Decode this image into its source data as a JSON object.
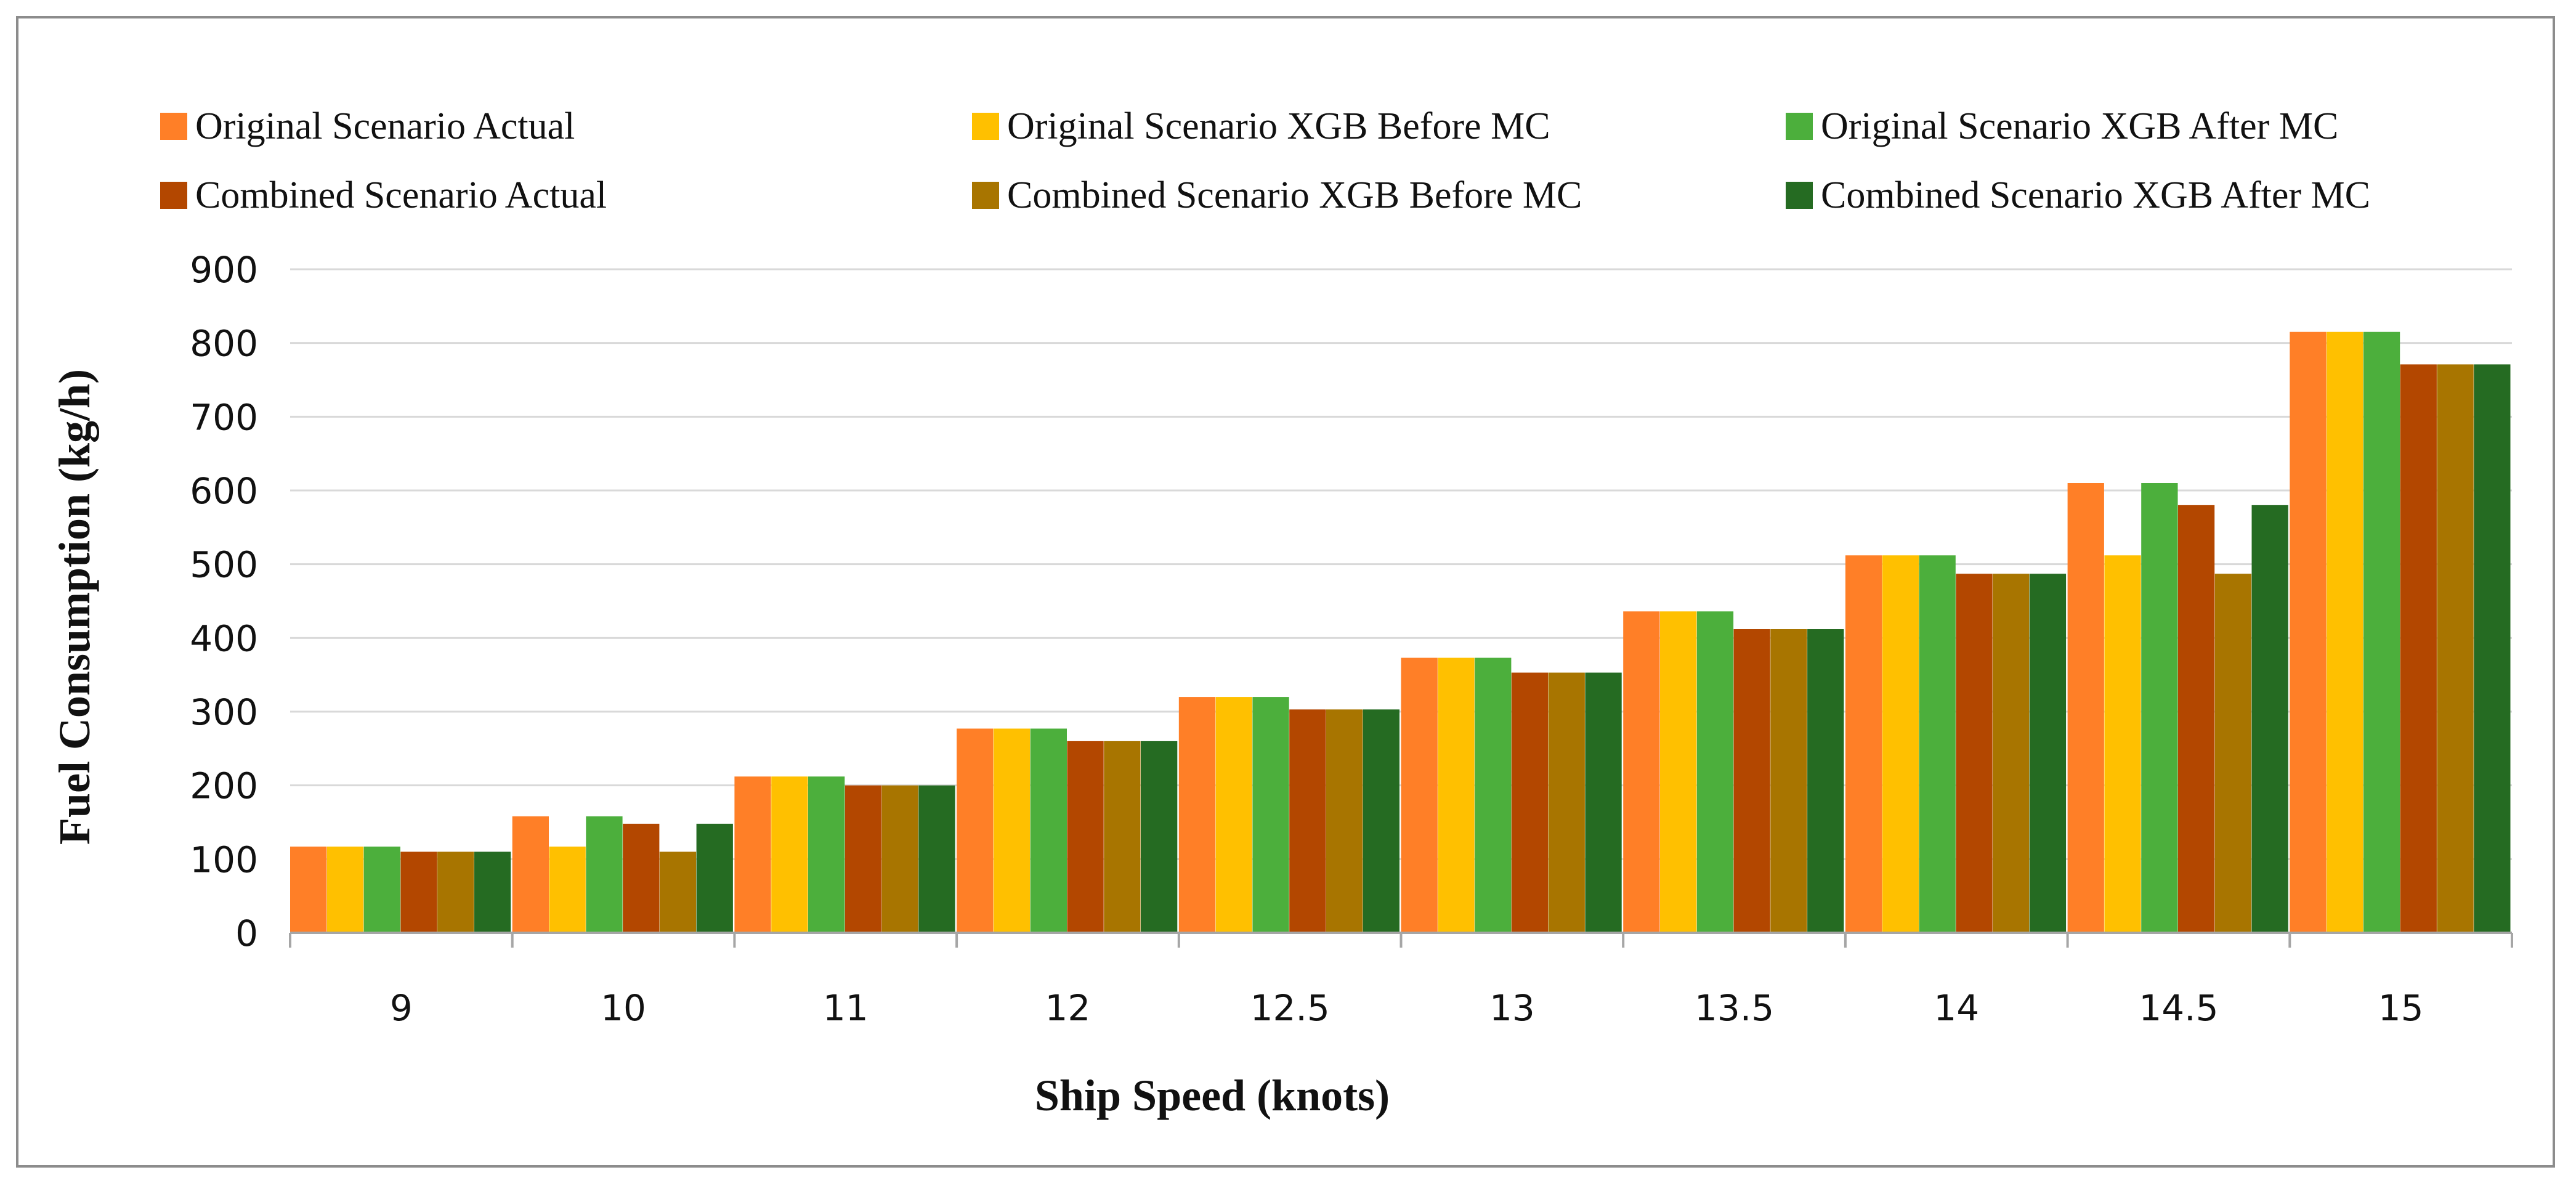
{
  "chart_data": {
    "type": "bar",
    "title": "",
    "xlabel": "Ship Speed (knots)",
    "ylabel": "Fuel Consumption (kg/h)",
    "ylim": [
      0,
      900
    ],
    "yticks": [
      0,
      100,
      200,
      300,
      400,
      500,
      600,
      700,
      800,
      900
    ],
    "grid": true,
    "legend_position": "top",
    "categories": [
      "9",
      "10",
      "11",
      "12",
      "12.5",
      "13",
      "13.5",
      "14",
      "14.5",
      "15"
    ],
    "series": [
      {
        "name": "Original Scenario Actual",
        "color": "#FF7F27",
        "values": [
          117,
          158,
          212,
          277,
          320,
          373,
          436,
          512,
          610,
          815
        ]
      },
      {
        "name": "Original Scenario XGB Before MC",
        "color": "#FFC000",
        "values": [
          117,
          117,
          212,
          277,
          320,
          373,
          436,
          512,
          512,
          815
        ]
      },
      {
        "name": "Original Scenario XGB After MC",
        "color": "#4CAF3C",
        "values": [
          117,
          158,
          212,
          277,
          320,
          373,
          436,
          512,
          610,
          815
        ]
      },
      {
        "name": "Combined Scenario Actual",
        "color": "#B34700",
        "values": [
          110,
          148,
          200,
          260,
          303,
          353,
          412,
          487,
          580,
          771
        ]
      },
      {
        "name": "Combined Scenario XGB Before MC",
        "color": "#A87500",
        "values": [
          110,
          110,
          200,
          260,
          303,
          353,
          412,
          487,
          487,
          771
        ]
      },
      {
        "name": "Combined Scenario XGB After MC",
        "color": "#256B22",
        "values": [
          110,
          148,
          200,
          260,
          303,
          353,
          412,
          487,
          580,
          771
        ]
      }
    ]
  }
}
